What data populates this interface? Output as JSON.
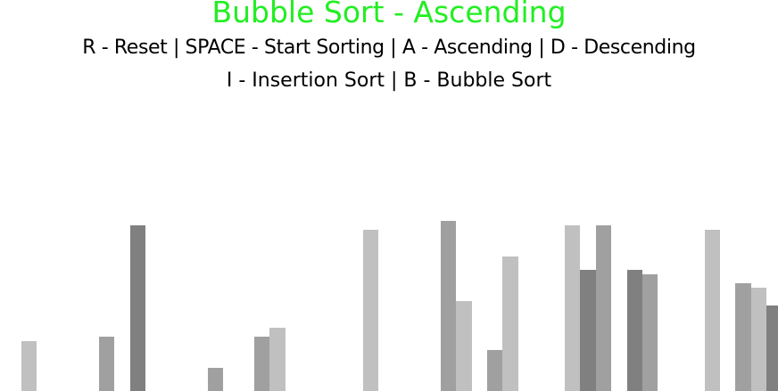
{
  "title": "Bubble Sort - Ascending",
  "controls": {
    "line1": "R - Reset | SPACE - Start Sorting | A - Ascending | D - Descending",
    "line2": "I - Insertion Sort | B - Bubble Sort"
  },
  "colors": {
    "title": "#22ee22",
    "text": "#000000",
    "background": "#ffffff",
    "bar_shades": [
      "#c0c0c0",
      "#a0a0a0",
      "#808080"
    ]
  },
  "bars": [
    {
      "value": 56,
      "shade": 0
    },
    {
      "value": 0,
      "shade": 0
    },
    {
      "value": 0,
      "shade": 0
    },
    {
      "value": 0,
      "shade": 0
    },
    {
      "value": 0,
      "shade": 0
    },
    {
      "value": 61,
      "shade": 1
    },
    {
      "value": 0,
      "shade": 0
    },
    {
      "value": 186,
      "shade": 2
    },
    {
      "value": 0,
      "shade": 0
    },
    {
      "value": 0,
      "shade": 0
    },
    {
      "value": 0,
      "shade": 0
    },
    {
      "value": 0,
      "shade": 0
    },
    {
      "value": 26,
      "shade": 1
    },
    {
      "value": 0,
      "shade": 0
    },
    {
      "value": 0,
      "shade": 0
    },
    {
      "value": 61,
      "shade": 1
    },
    {
      "value": 71,
      "shade": 0
    },
    {
      "value": 0,
      "shade": 0
    },
    {
      "value": 0,
      "shade": 0
    },
    {
      "value": 0,
      "shade": 0
    },
    {
      "value": 0,
      "shade": 0
    },
    {
      "value": 0,
      "shade": 0
    },
    {
      "value": 181,
      "shade": 0
    },
    {
      "value": 0,
      "shade": 0
    },
    {
      "value": 0,
      "shade": 0
    },
    {
      "value": 0,
      "shade": 0
    },
    {
      "value": 0,
      "shade": 0
    },
    {
      "value": 191,
      "shade": 1
    },
    {
      "value": 101,
      "shade": 0
    },
    {
      "value": 0,
      "shade": 0
    },
    {
      "value": 46,
      "shade": 1
    },
    {
      "value": 151,
      "shade": 0
    },
    {
      "value": 0,
      "shade": 0
    },
    {
      "value": 0,
      "shade": 0
    },
    {
      "value": 0,
      "shade": 0
    },
    {
      "value": 186,
      "shade": 0
    },
    {
      "value": 136,
      "shade": 2
    },
    {
      "value": 186,
      "shade": 1
    },
    {
      "value": 0,
      "shade": 0
    },
    {
      "value": 136,
      "shade": 2
    },
    {
      "value": 131,
      "shade": 1
    },
    {
      "value": 0,
      "shade": 0
    },
    {
      "value": 0,
      "shade": 0
    },
    {
      "value": 0,
      "shade": 0
    },
    {
      "value": 181,
      "shade": 0
    },
    {
      "value": 0,
      "shade": 0
    },
    {
      "value": 121,
      "shade": 1
    },
    {
      "value": 116,
      "shade": 0
    },
    {
      "value": 96,
      "shade": 2
    },
    {
      "value": 141,
      "shade": 1
    }
  ]
}
